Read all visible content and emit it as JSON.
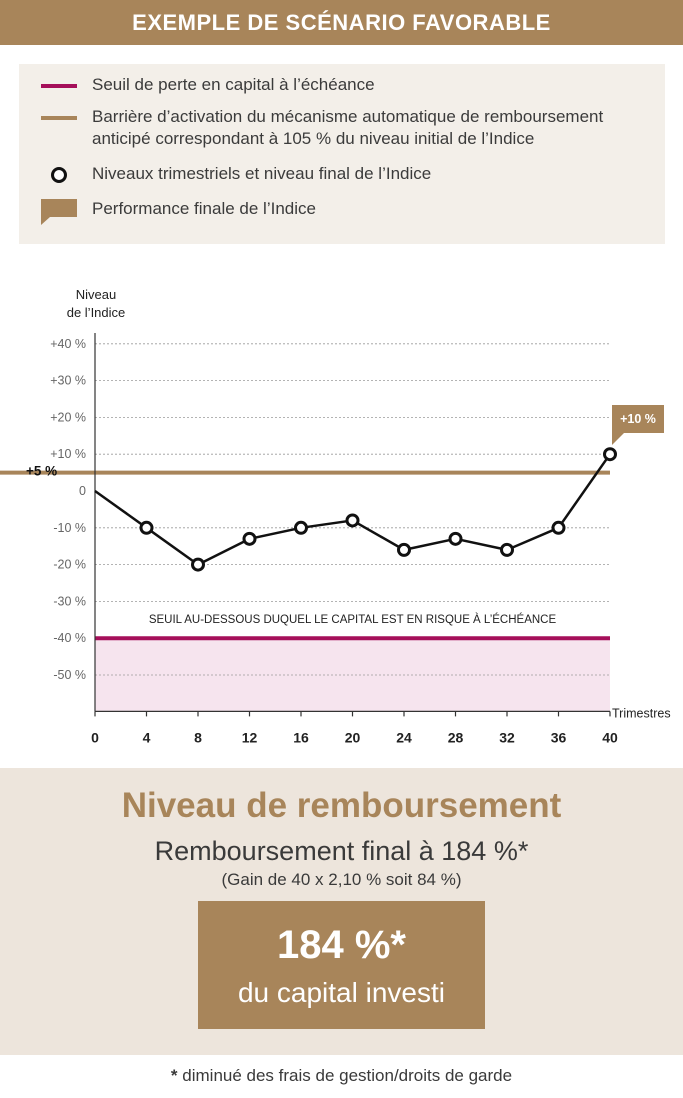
{
  "header": {
    "title": "EXEMPLE DE SCÉNARIO FAVORABLE"
  },
  "legend": {
    "items": [
      {
        "label": "Seuil de perte en capital à l’échéance",
        "color": "#a50f5a",
        "symbol": "line"
      },
      {
        "label": "Barrière d’activation du mécanisme automatique de remboursement anticipé correspondant à 105 % du niveau initial de l’Indice",
        "color": "#a8855a",
        "symbol": "line"
      },
      {
        "label": "Niveaux trimestriels et niveau final de l’Indice",
        "color": "#111111",
        "symbol": "circle"
      },
      {
        "label": "Performance finale de l’Indice",
        "color": "#a8855a",
        "symbol": "flag"
      }
    ]
  },
  "chart_data": {
    "type": "line",
    "ylabel": "Niveau\nde l’Indice",
    "xlabel": "Trimestres",
    "ylim": [
      -55,
      45
    ],
    "y_ticks": [
      40,
      30,
      20,
      10,
      0,
      -10,
      -20,
      -30,
      -40,
      -50
    ],
    "y_tick_labels": [
      "+40 %",
      "+30 %",
      "+20 %",
      "+10 %",
      "0",
      "-10 %",
      "-20 %",
      "-30 %",
      "-40 %",
      "-50 %"
    ],
    "x_ticks": [
      0,
      4,
      8,
      12,
      16,
      20,
      24,
      28,
      32,
      36,
      40
    ],
    "x_tick_labels": [
      "0",
      "4",
      "8",
      "12",
      "16",
      "20",
      "24",
      "28",
      "32",
      "36",
      "40"
    ],
    "grid": true,
    "series": [
      {
        "name": "Niveaux trimestriels et niveau final de l’Indice",
        "x": [
          0,
          4,
          8,
          12,
          16,
          20,
          24,
          28,
          32,
          36,
          40
        ],
        "y": [
          0,
          -10,
          -20,
          -13,
          -10,
          -8,
          -16,
          -13,
          -16,
          -10,
          10
        ]
      }
    ],
    "barrier": {
      "value": 5,
      "label": "+5 %",
      "color": "#a8855a"
    },
    "threshold": {
      "value": -40,
      "label": "SEUIL AU-DESSOUS DUQUEL LE CAPITAL EST EN RISQUE À L’ÉCHÉANCE",
      "color": "#a50f5a"
    },
    "final_performance": {
      "label": "+10 %",
      "color": "#a8855a"
    }
  },
  "result": {
    "title": "Niveau de remboursement",
    "subtitle": "Remboursement final à 184 %*",
    "note": "(Gain de 40 x 2,10 % soit 84 %)",
    "value": "184 %*",
    "value_caption": "du capital investi"
  },
  "footnote": {
    "star": "*",
    "text": " diminué des frais de gestion/droits de garde"
  }
}
